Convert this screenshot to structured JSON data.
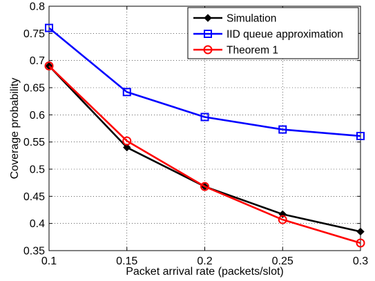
{
  "chart_data": {
    "type": "line",
    "title": "",
    "xlabel": "Packet arrival rate (packets/slot)",
    "ylabel": "Coverage probability",
    "xlim": [
      0.1,
      0.3
    ],
    "ylim": [
      0.35,
      0.8
    ],
    "x": [
      0.1,
      0.15,
      0.2,
      0.25,
      0.3
    ],
    "xticks": [
      "0.1",
      "0.15",
      "0.2",
      "0.25",
      "0.3"
    ],
    "yticks": [
      "0.35",
      "0.4",
      "0.45",
      "0.5",
      "0.55",
      "0.6",
      "0.65",
      "0.7",
      "0.75",
      "0.8"
    ],
    "grid": true,
    "legend_position": "top-right",
    "series": [
      {
        "name": "Simulation",
        "color": "#000000",
        "marker": "diamond",
        "values": [
          0.69,
          0.54,
          0.468,
          0.417,
          0.385
        ]
      },
      {
        "name": "IID queue approximation",
        "color": "#0000ff",
        "marker": "square",
        "values": [
          0.76,
          0.642,
          0.596,
          0.573,
          0.561
        ]
      },
      {
        "name": "Theorem 1",
        "color": "#ff0000",
        "marker": "circle",
        "values": [
          0.69,
          0.552,
          0.468,
          0.407,
          0.364
        ]
      }
    ]
  }
}
